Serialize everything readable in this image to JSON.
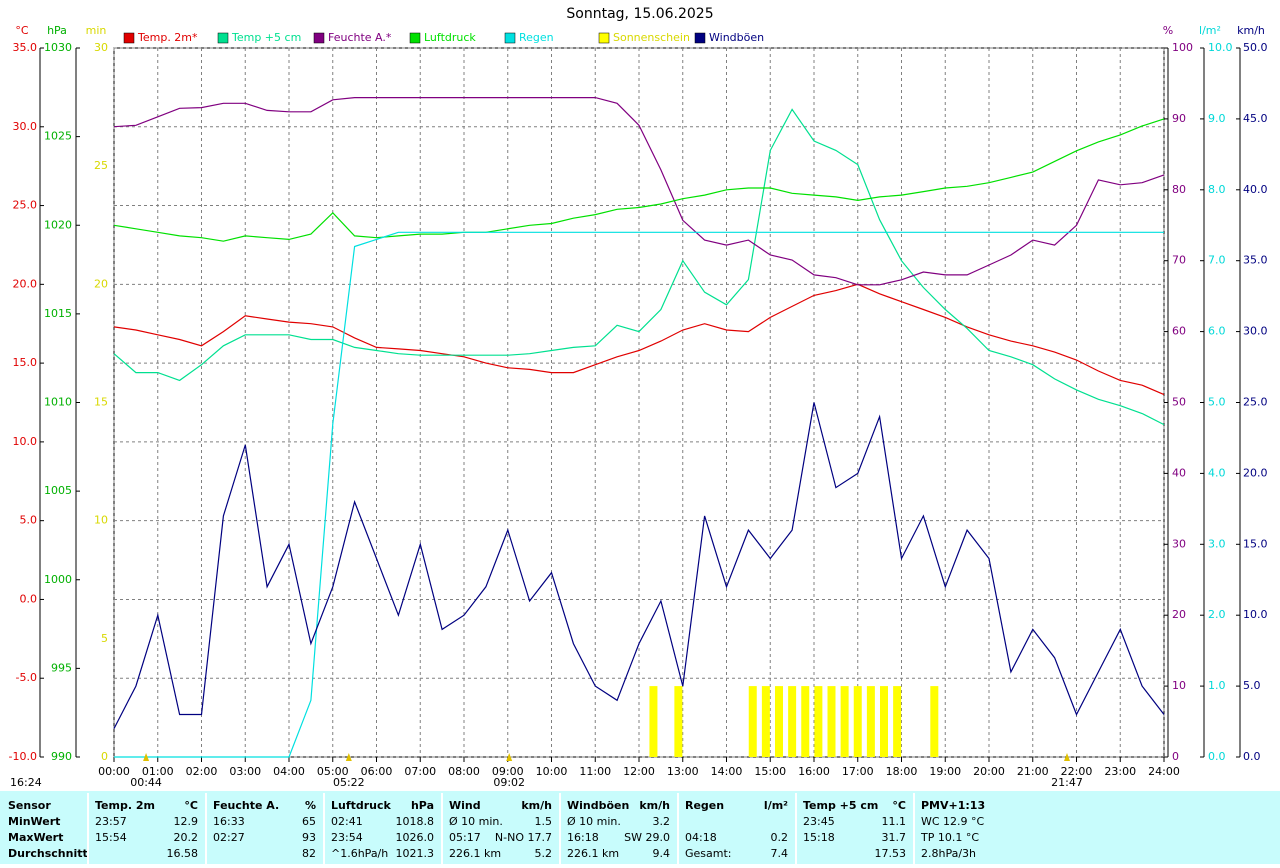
{
  "chart_data": {
    "type": "line",
    "title": "Sonntag, 15.06.2025",
    "grid": true,
    "xlim": [
      0,
      24
    ],
    "xticks": [
      {
        "value": 0,
        "label": "00:00"
      },
      {
        "value": 1,
        "label": "01:00"
      },
      {
        "value": 2,
        "label": "02:00"
      },
      {
        "value": 3,
        "label": "03:00"
      },
      {
        "value": 4,
        "label": "04:00"
      },
      {
        "value": 5,
        "label": "05:00"
      },
      {
        "value": 6,
        "label": "06:00"
      },
      {
        "value": 7,
        "label": "07:00"
      },
      {
        "value": 8,
        "label": "08:00"
      },
      {
        "value": 9,
        "label": "09:00"
      },
      {
        "value": 10,
        "label": "10:00"
      },
      {
        "value": 11,
        "label": "11:00"
      },
      {
        "value": 12,
        "label": "12:00"
      },
      {
        "value": 13,
        "label": "13:00"
      },
      {
        "value": 14,
        "label": "14:00"
      },
      {
        "value": 15,
        "label": "15:00"
      },
      {
        "value": 16,
        "label": "16:00"
      },
      {
        "value": 17,
        "label": "17:00"
      },
      {
        "value": 18,
        "label": "18:00"
      },
      {
        "value": 19,
        "label": "19:00"
      },
      {
        "value": 20,
        "label": "20:00"
      },
      {
        "value": 21,
        "label": "21:00"
      },
      {
        "value": 22,
        "label": "22:00"
      },
      {
        "value": 23,
        "label": "23:00"
      },
      {
        "value": 24,
        "label": "24:00"
      }
    ],
    "axes": {
      "temp": {
        "label": "°C",
        "color": "#e00000",
        "ylim": [
          -10,
          35
        ],
        "yticks": [
          {
            "value": -10,
            "label": "-10.0"
          },
          {
            "value": -5,
            "label": "-5.0"
          },
          {
            "value": 0,
            "label": "0.0"
          },
          {
            "value": 5,
            "label": "5.0"
          },
          {
            "value": 10,
            "label": "10.0"
          },
          {
            "value": 15,
            "label": "15.0"
          },
          {
            "value": 20,
            "label": "20.0"
          },
          {
            "value": 25,
            "label": "25.0"
          },
          {
            "value": 30,
            "label": "30.0"
          },
          {
            "value": 35,
            "label": "35.0"
          }
        ]
      },
      "pressure": {
        "label": "hPa",
        "color": "#00c000",
        "ylim": [
          990,
          1030
        ],
        "yticks": [
          990,
          995,
          1000,
          1005,
          1010,
          1015,
          1020,
          1025,
          1030
        ]
      },
      "sun": {
        "label": "min",
        "color": "#e0e000",
        "ylim": [
          0,
          30
        ],
        "yticks": [
          0,
          5,
          10,
          15,
          20,
          25,
          30
        ]
      },
      "humidity": {
        "label": "%",
        "color": "#800080",
        "ylim": [
          0,
          100
        ],
        "yticks": [
          0,
          10,
          20,
          30,
          40,
          50,
          60,
          70,
          80,
          90,
          100
        ]
      },
      "rain": {
        "label": "l/m²",
        "color": "#00d8d8",
        "ylim": [
          0,
          10
        ],
        "yticks": [
          {
            "value": 0,
            "label": "0.0"
          },
          {
            "value": 1,
            "label": "1.0"
          },
          {
            "value": 2,
            "label": "2.0"
          },
          {
            "value": 3,
            "label": "3.0"
          },
          {
            "value": 4,
            "label": "4.0"
          },
          {
            "value": 5,
            "label": "5.0"
          },
          {
            "value": 6,
            "label": "6.0"
          },
          {
            "value": 7,
            "label": "7.0"
          },
          {
            "value": 8,
            "label": "8.0"
          },
          {
            "value": 9,
            "label": "9.0"
          },
          {
            "value": 10,
            "label": "10.0"
          }
        ]
      },
      "wind": {
        "label": "km/h",
        "color": "#000080",
        "ylim": [
          0,
          50
        ],
        "yticks": [
          {
            "value": 0,
            "label": "0.0"
          },
          {
            "value": 5,
            "label": "5.0"
          },
          {
            "value": 10,
            "label": "10.0"
          },
          {
            "value": 15,
            "label": "15.0"
          },
          {
            "value": 20,
            "label": "20.0"
          },
          {
            "value": 25,
            "label": "25.0"
          },
          {
            "value": 30,
            "label": "30.0"
          },
          {
            "value": 35,
            "label": "35.0"
          },
          {
            "value": 40,
            "label": "40.0"
          },
          {
            "value": 45,
            "label": "45.0"
          },
          {
            "value": 50,
            "label": "50.0"
          }
        ]
      }
    },
    "x": [
      0,
      0.5,
      1,
      1.5,
      2,
      2.5,
      3,
      3.5,
      4,
      4.5,
      5,
      5.5,
      6,
      6.5,
      7,
      7.5,
      8,
      8.5,
      9,
      9.5,
      10,
      10.5,
      11,
      11.5,
      12,
      12.5,
      13,
      13.5,
      14,
      14.5,
      15,
      15.5,
      16,
      16.5,
      17,
      17.5,
      18,
      18.5,
      19,
      19.5,
      20,
      20.5,
      21,
      21.5,
      22,
      22.5,
      23,
      23.5,
      24
    ],
    "series": [
      {
        "name": "Temp. 2m*",
        "type": "line",
        "axis": "temp",
        "color": "#e00000",
        "values": [
          17.3,
          17.1,
          16.8,
          16.5,
          16.1,
          17.0,
          18.0,
          17.8,
          17.6,
          17.5,
          17.3,
          16.6,
          16.0,
          15.9,
          15.8,
          15.6,
          15.4,
          15.0,
          14.7,
          14.6,
          14.4,
          14.4,
          14.9,
          15.4,
          15.8,
          16.4,
          17.1,
          17.5,
          17.1,
          17.0,
          17.9,
          18.6,
          19.3,
          19.6,
          20.0,
          19.4,
          18.9,
          18.4,
          17.9,
          17.3,
          16.8,
          16.4,
          16.1,
          15.7,
          15.2,
          14.5,
          13.9,
          13.6,
          13.0
        ]
      },
      {
        "name": "Temp +5 cm",
        "type": "line",
        "axis": "temp",
        "color": "#00e090",
        "values": [
          15.6,
          14.4,
          14.4,
          13.9,
          14.9,
          16.1,
          16.8,
          16.8,
          16.8,
          16.5,
          16.5,
          16.0,
          15.8,
          15.6,
          15.5,
          15.5,
          15.5,
          15.5,
          15.5,
          15.6,
          15.8,
          16.0,
          16.1,
          17.4,
          17.0,
          18.4,
          21.5,
          19.5,
          18.7,
          20.3,
          28.5,
          31.1,
          29.1,
          28.5,
          27.6,
          24.1,
          21.5,
          19.8,
          18.4,
          17.2,
          15.8,
          15.4,
          14.9,
          14.0,
          13.3,
          12.7,
          12.3,
          11.8,
          11.1
        ]
      },
      {
        "name": "Feuchte A.*",
        "type": "line",
        "axis": "humidity",
        "color": "#800080",
        "values": [
          88.9,
          89.1,
          90.3,
          91.5,
          91.6,
          92.2,
          92.2,
          91.2,
          91.0,
          91.0,
          92.7,
          93,
          93,
          93,
          93,
          93,
          93,
          93,
          93,
          93,
          93,
          93,
          93,
          92.2,
          89.1,
          82.8,
          75.7,
          72.9,
          72.2,
          72.9,
          70.8,
          70.1,
          68.0,
          67.6,
          66.6,
          66.6,
          67.3,
          68.4,
          68.0,
          68.0,
          69.4,
          70.8,
          72.9,
          72.2,
          75.0,
          81.4,
          80.7,
          81.0,
          82.1
        ]
      },
      {
        "name": "Luftdruck",
        "type": "line",
        "axis": "pressure",
        "color": "#00e000",
        "values": [
          1020.0,
          1019.8,
          1019.6,
          1019.4,
          1019.3,
          1019.1,
          1019.4,
          1019.3,
          1019.2,
          1019.5,
          1020.7,
          1019.4,
          1019.3,
          1019.4,
          1019.5,
          1019.5,
          1019.6,
          1019.6,
          1019.8,
          1020.0,
          1020.1,
          1020.4,
          1020.6,
          1020.9,
          1021.0,
          1021.2,
          1021.5,
          1021.7,
          1022.0,
          1022.1,
          1022.1,
          1021.8,
          1021.7,
          1021.6,
          1021.4,
          1021.6,
          1021.7,
          1021.9,
          1022.1,
          1022.2,
          1022.4,
          1022.7,
          1023.0,
          1023.6,
          1024.2,
          1024.7,
          1025.1,
          1025.6,
          1026.0
        ]
      },
      {
        "name": "Regen",
        "type": "line",
        "axis": "rain",
        "color": "#00e0e0",
        "values": [
          0,
          0,
          0,
          0,
          0,
          0,
          0,
          0,
          0,
          0.8,
          4.7,
          7.2,
          7.3,
          7.4,
          7.4,
          7.4,
          7.4,
          7.4,
          7.4,
          7.4,
          7.4,
          7.4,
          7.4,
          7.4,
          7.4,
          7.4,
          7.4,
          7.4,
          7.4,
          7.4,
          7.4,
          7.4,
          7.4,
          7.4,
          7.4,
          7.4,
          7.4,
          7.4,
          7.4,
          7.4,
          7.4,
          7.4,
          7.4,
          7.4,
          7.4,
          7.4,
          7.4,
          7.4,
          7.4
        ]
      },
      {
        "name": "Sonnenschein",
        "type": "bar",
        "axis": "sun",
        "color": "#ffff00",
        "x": [
          12.33,
          12.9,
          14.6,
          14.9,
          15.2,
          15.5,
          15.8,
          16.1,
          16.4,
          16.7,
          17.0,
          17.3,
          17.6,
          17.9,
          18.75
        ],
        "values": [
          3,
          3,
          3,
          3,
          3,
          3,
          3,
          3,
          3,
          3,
          3,
          3,
          3,
          3,
          3
        ]
      },
      {
        "name": "Windböen",
        "type": "line",
        "axis": "wind",
        "color": "#000080",
        "values": [
          2,
          5,
          10,
          3,
          3,
          17,
          22,
          12,
          15,
          8,
          12,
          18,
          14,
          10,
          15,
          9,
          10,
          12,
          16,
          11,
          13,
          8,
          5,
          4,
          8,
          11,
          5,
          17,
          12,
          16,
          14,
          16,
          25,
          19,
          20,
          24,
          14,
          17,
          12,
          16,
          14,
          6,
          9,
          7,
          3,
          6,
          9,
          5,
          3
        ]
      }
    ],
    "annotations": [
      {
        "x": 0.733,
        "label": "00:44"
      },
      {
        "x": 5.367,
        "label": "05:22"
      },
      {
        "x": 9.033,
        "label": "09:02"
      },
      {
        "x": 21.783,
        "label": "21:47"
      }
    ],
    "corner_label": "16:24"
  },
  "summary": {
    "header_label": "Sensor",
    "row_labels": [
      "MinWert",
      "MaxWert",
      "Durchschnitt"
    ],
    "groups": [
      {
        "title": "Temp. 2m",
        "unit": "°C",
        "rows": [
          [
            "23:57",
            "12.9"
          ],
          [
            "15:54",
            "20.2"
          ],
          [
            null,
            "16.58"
          ]
        ]
      },
      {
        "title": "Feuchte A.",
        "unit": "%",
        "rows": [
          [
            "16:33",
            "65"
          ],
          [
            "02:27",
            "93"
          ],
          [
            null,
            "82"
          ]
        ]
      },
      {
        "title": "Luftdruck",
        "unit": "hPa",
        "rows": [
          [
            "02:41",
            "1018.8"
          ],
          [
            "23:54",
            "1026.0"
          ],
          [
            "^1.6hPa/h",
            "1021.3"
          ]
        ]
      },
      {
        "title": "Wind",
        "unit": "km/h",
        "rows": [
          [
            "Ø 10 min.",
            "1.5"
          ],
          [
            "05:17",
            "N-NO 17.7"
          ],
          [
            "226.1 km",
            "5.2"
          ]
        ]
      },
      {
        "title": "Windböen",
        "unit": "km/h",
        "rows": [
          [
            "Ø 10 min.",
            "3.2"
          ],
          [
            "16:18",
            "SW 29.0"
          ],
          [
            "226.1 km",
            "9.4"
          ]
        ]
      },
      {
        "title": "Regen",
        "unit": "l/m²",
        "rows": [
          [
            null,
            null
          ],
          [
            "04:18",
            "0.2"
          ],
          [
            "Gesamt:",
            "7.4"
          ]
        ]
      },
      {
        "title": "Temp +5 cm",
        "unit": "°C",
        "rows": [
          [
            "23:45",
            "11.1"
          ],
          [
            "15:18",
            "31.7"
          ],
          [
            null,
            "17.53"
          ]
        ]
      },
      {
        "title": "PMV+1:13",
        "rows": [
          [
            "WC 12.9 °C"
          ],
          [
            "TP 10.1 °C"
          ],
          [
            "2.8hPa/3h"
          ]
        ]
      }
    ]
  }
}
